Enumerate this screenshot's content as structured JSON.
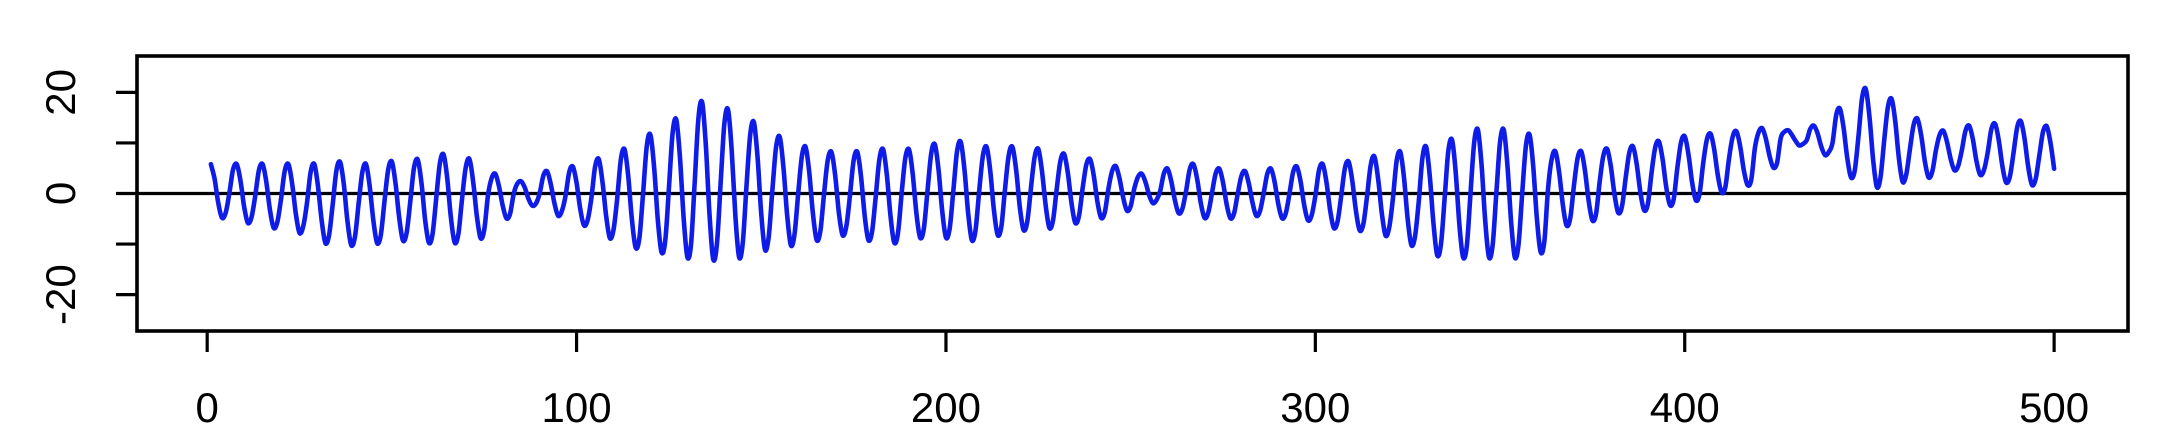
{
  "figure": {
    "background_color": "#ffffff",
    "axis_color": "#000000",
    "series_color": "#0f1ce8"
  },
  "chart_data": {
    "type": "line",
    "title": "",
    "xlabel": "",
    "ylabel": "",
    "grid": false,
    "legend": null,
    "x_start": 1,
    "x_step": 1,
    "xlim": [
      -19,
      520
    ],
    "ylim": [
      -27.2,
      27.2
    ],
    "x_ticks": [
      0,
      100,
      200,
      300,
      400,
      500
    ],
    "x_tick_labels": [
      "0",
      "100",
      "200",
      "300",
      "400",
      "500"
    ],
    "y_ticks": [
      -20,
      -10,
      0,
      10,
      20
    ],
    "y_tick_labels": [
      "-20",
      "",
      "0",
      "",
      "20"
    ],
    "hline": 0,
    "values": [
      5.8,
      2.9,
      -1.9,
      -4.8,
      -3.8,
      0,
      4.7,
      5.8,
      2.6,
      -2.6,
      -5.8,
      -4.7,
      -0.5,
      4.6,
      5.8,
      2.3,
      -3.3,
      -6.8,
      -5.6,
      -1,
      4.5,
      5.8,
      2,
      -4,
      -7.8,
      -6.5,
      -2,
      4.2,
      5.8,
      1.4,
      -5.4,
      -9.8,
      -8.2,
      -2,
      4.6,
      6.2,
      1.7,
      -5.7,
      -10.2,
      -8.6,
      -2,
      4.2,
      5.8,
      1.4,
      -5.4,
      -9.8,
      -8.2,
      -1.5,
      4.7,
      6.3,
      1.9,
      -4.9,
      -9.3,
      -7.7,
      -1.5,
      5.1,
      6.7,
      2.2,
      -5.2,
      -9.7,
      -8.1,
      -1,
      6,
      7.7,
      2.9,
      -4.9,
      -9.7,
      -8,
      -1,
      5.2,
      6.8,
      2.4,
      -4.4,
      -8.8,
      -7.2,
      -0.5,
      3,
      3.9,
      1.4,
      -2.4,
      -4.9,
      -4,
      0,
      2,
      2.4,
      1.1,
      -1.1,
      -2.4,
      -2,
      0,
      3.5,
      4.4,
      1.9,
      -1.9,
      -4.4,
      -3.5,
      -0.5,
      4.2,
      5.3,
      2.1,
      -3.1,
      -6.3,
      -5.2,
      -1,
      5.2,
      6.8,
      2.4,
      -4.4,
      -8.8,
      -7.2,
      -1,
      6.8,
      8.7,
      3.3,
      -5.3,
      -10.7,
      -8.8,
      0,
      9.4,
      11.6,
      5.2,
      -5.2,
      -11.6,
      -9.4,
      1,
      11.9,
      14.6,
      7,
      -5,
      -12.6,
      -9.9,
      2.5,
      15,
      18,
      9.4,
      -4.4,
      -13,
      -10,
      2,
      13.7,
      16.6,
      8.5,
      -4.5,
      -12.6,
      -9.7,
      1.5,
      11.6,
      14.1,
      7.1,
      -4.1,
      -11.1,
      -8.6,
      0.5,
      9.1,
      11.2,
      5.2,
      -4.2,
      -10.2,
      -8.1,
      0,
      7.4,
      9.2,
      4.1,
      -4.1,
      -9.2,
      -7.4,
      0,
      6.6,
      8.2,
      3.7,
      -3.7,
      -8.2,
      -6.6,
      -0.5,
      6.5,
      8.2,
      3.4,
      -4.4,
      -9.2,
      -7.5,
      -0.5,
      6.9,
      8.7,
      3.6,
      -4.6,
      -9.7,
      -7.9,
      0,
      7,
      8.7,
      3.9,
      -3.9,
      -8.7,
      -7,
      0.5,
      7.9,
      9.7,
      4.6,
      -3.6,
      -8.7,
      -6.9,
      0.5,
      8.3,
      10.2,
      4.8,
      -3.8,
      -9.2,
      -7.3,
      0.5,
      7.5,
      9.2,
      4.4,
      -3.4,
      -8.2,
      -6.5,
      1,
      7.6,
      9.2,
      4.7,
      -2.7,
      -7.2,
      -5.6,
      1,
      7.2,
      8.8,
      4.4,
      -2.4,
      -6.8,
      -5.2,
      1,
      6.5,
      7.8,
      4,
      -2,
      -5.8,
      -4.5,
      1,
      5.7,
      6.8,
      3.6,
      -1.6,
      -4.8,
      -3.7,
      1,
      4.5,
      5.4,
      2.9,
      -0.9,
      -3.4,
      -2.5,
      1,
      3.3,
      3.9,
      2.3,
      -0.3,
      -1.9,
      -1.3,
      0.5,
      4,
      4.9,
      2.4,
      -1.4,
      -3.9,
      -3,
      0.5,
      4.8,
      5.8,
      2.9,
      -1.9,
      -4.8,
      -3.8,
      0,
      3.9,
      4.9,
      2.2,
      -2.2,
      -4.9,
      -3.9,
      0,
      3.5,
      4.4,
      1.9,
      -1.9,
      -4.4,
      -3.5,
      0,
      3.9,
      4.9,
      2.2,
      -2.2,
      -4.9,
      -3.9,
      0,
      4.3,
      5.3,
      2.4,
      -2.4,
      -5.3,
      -4.3,
      -0.5,
      4.6,
      5.8,
      2.3,
      -3.3,
      -6.8,
      -5.6,
      -0.5,
      5,
      6.3,
      2.5,
      -3.5,
      -7.3,
      -6,
      -0.5,
      5.7,
      7.3,
      2.9,
      -3.9,
      -8.3,
      -6.7,
      -1,
      6.4,
      8.2,
      3.1,
      -5.1,
      -10.2,
      -8.4,
      -1.5,
      7.1,
      9.2,
      3.2,
      -6.2,
      -12.2,
      -10.1,
      -1,
      8.4,
      10.6,
      4.2,
      -6.2,
      -12.6,
      -10.4,
      0,
      10.1,
      12.6,
      5.6,
      -5.6,
      -12.6,
      -10.1,
      0,
      10.1,
      12.6,
      5.6,
      -5.6,
      -12.6,
      -10.1,
      0,
      9.4,
      11.6,
      5.2,
      -5.2,
      -11.6,
      -9.4,
      1,
      6.9,
      8.3,
      4.2,
      -2.2,
      -6.3,
      -4.9,
      1.5,
      7,
      8.3,
      4.5,
      -1.5,
      -5.3,
      -4,
      2.5,
      7.6,
      8.8,
      5.3,
      -0.3,
      -3.8,
      -2.6,
      3,
      8.1,
      9.3,
      5.8,
      0.2,
      -3.3,
      -2.1,
      4,
      9.1,
      10.3,
      6.8,
      1.2,
      -2.3,
      -1.1,
      5,
      10.1,
      11.3,
      7.8,
      2.2,
      -1.3,
      -0.1,
      6,
      10.7,
      11.8,
      8.6,
      3.4,
      0.2,
      1.3,
      7,
      11.3,
      12.3,
      9.4,
      4.6,
      1.7,
      2.7,
      9,
      12.1,
      12.9,
      10.7,
      7.3,
      5.1,
      6.1,
      11,
      12.2,
      12.5,
      11.6,
      10.4,
      9.5,
      9.8,
      10.5,
      12.8,
      13.4,
      11.8,
      9.2,
      7.6,
      8.2,
      10,
      15.5,
      16.8,
      13,
      7,
      3.2,
      4.5,
      11,
      18.8,
      20.7,
      15.3,
      6.7,
      1.3,
      3.2,
      10.5,
      17.1,
      18.7,
      14.2,
      6.8,
      2.3,
      3.9,
      9,
      13.7,
      14.8,
      11.6,
      6.4,
      3.2,
      4.3,
      8.5,
      11.6,
      12.4,
      10.2,
      6.8,
      4.6,
      5.4,
      8.5,
      12.4,
      13.4,
      10.7,
      6.3,
      3.7,
      4.6,
      8,
      12.7,
      13.8,
      10.6,
      5.4,
      2.2,
      3.3,
      8,
      13.1,
      14.3,
      10.8,
      5.2,
      1.7,
      2.9,
      7.5,
      12.2,
      13.3,
      10.1,
      4.9
    ]
  }
}
